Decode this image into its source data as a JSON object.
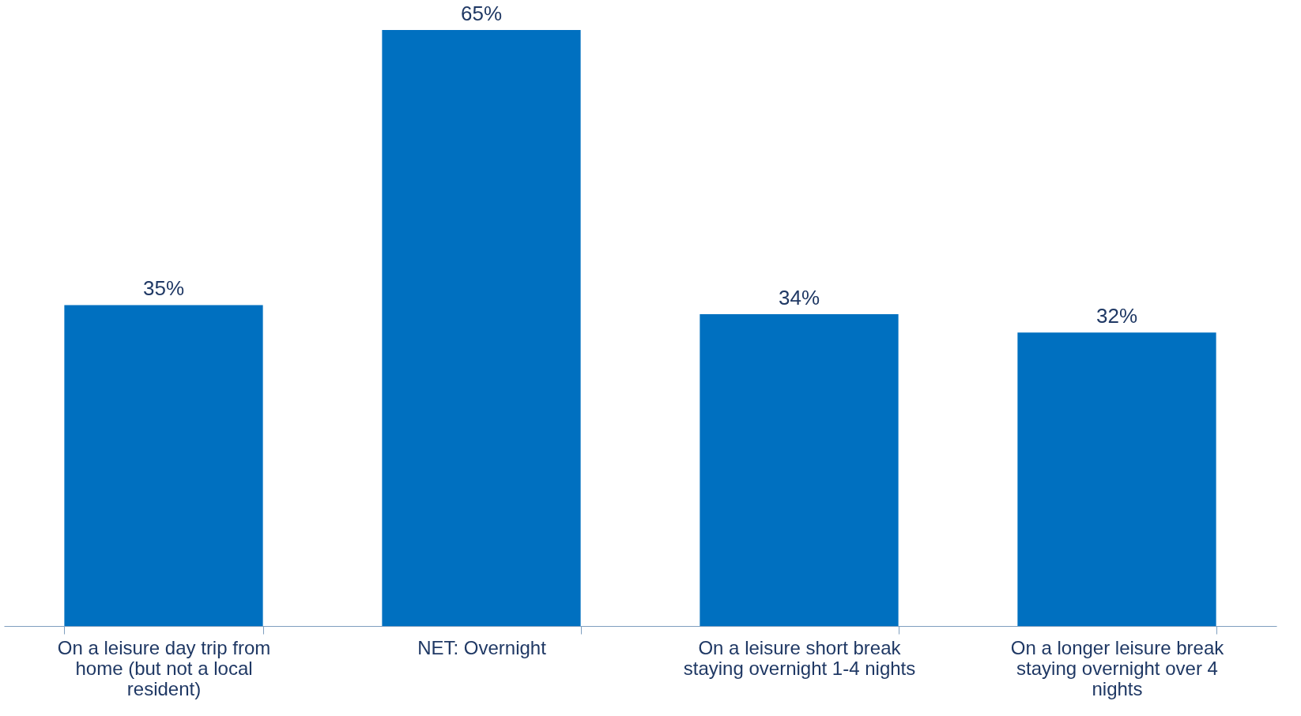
{
  "chart_data": {
    "type": "bar",
    "categories": [
      "On a leisure day trip from home (but not a local resident)",
      "NET: Overnight",
      "On a leisure short break staying overnight 1-4 nights",
      "On a longer leisure break staying overnight over 4 nights"
    ],
    "values": [
      35,
      65,
      34,
      32
    ],
    "color": "#0070c0",
    "value_labels": [
      "35%",
      "65%",
      "34%",
      "32%"
    ]
  }
}
